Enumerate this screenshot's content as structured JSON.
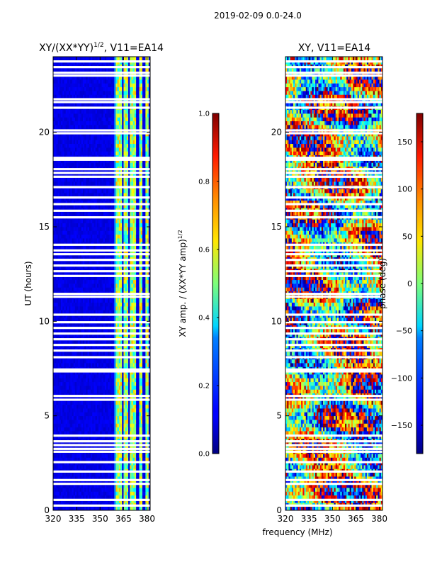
{
  "figure": {
    "suptitle": "2019-02-09 0.0-24.0",
    "xlabel_shared": "frequency (MHz)"
  },
  "chart_data": [
    {
      "type": "heatmap",
      "title_main": "XY/(XX*YY)",
      "title_exp": "1/2",
      "title_tail": ", V11=EA14",
      "ylabel": "UT (hours)",
      "xlim": [
        320,
        382
      ],
      "ylim": [
        0,
        24
      ],
      "xticks": [
        320,
        335,
        350,
        365,
        380
      ],
      "yticks": [
        0,
        5,
        10,
        15,
        20
      ],
      "colorbar": {
        "label_main": "XY amp. / (XX*YY amp)",
        "label_exp": "1/2",
        "range": [
          0.0,
          1.0
        ],
        "ticks": [
          "0.0",
          "0.2",
          "0.4",
          "0.6",
          "0.8",
          "1.0"
        ],
        "colormap": "jet"
      },
      "gap_hours": [
        0.25,
        0.55,
        1.4,
        1.6,
        2.05,
        2.55,
        3.1,
        3.25,
        3.45,
        3.65,
        3.95,
        5.85,
        6.05,
        7.35,
        7.45,
        8.1,
        8.45,
        8.75,
        9.05,
        9.35,
        9.65,
        9.95,
        10.35,
        11.3,
        11.45,
        12.4,
        12.65,
        12.95,
        13.25,
        13.55,
        13.75,
        14.05,
        15.5,
        15.85,
        16.2,
        16.55,
        17.1,
        17.65,
        17.85,
        18.05,
        18.55,
        18.65,
        19.95,
        20.1,
        21.3,
        21.6,
        21.75,
        23.0,
        23.15,
        23.45,
        23.75
      ],
      "bright_bands_mhz": [
        [
          360,
          364
        ],
        [
          365,
          368
        ],
        [
          369,
          373
        ],
        [
          375,
          377
        ],
        [
          379,
          381
        ]
      ],
      "amp_levels": {
        "background": 0.1,
        "band_low": 0.35,
        "band_high": 0.7
      }
    },
    {
      "type": "heatmap",
      "title_main": "XY, V11=EA14",
      "ylabel": "",
      "xlim": [
        320,
        382
      ],
      "ylim": [
        0,
        24
      ],
      "xticks": [
        320,
        335,
        350,
        365,
        380
      ],
      "yticks": [
        0,
        5,
        10,
        15,
        20
      ],
      "colorbar": {
        "label_main": "phase (deg)",
        "range": [
          -180,
          180
        ],
        "ticks": [
          "−150",
          "−100",
          "−50",
          "0",
          "50",
          "100",
          "150"
        ],
        "tick_values": [
          -150,
          -100,
          -50,
          0,
          50,
          100,
          150
        ],
        "colormap": "jet"
      },
      "gap_hours": [
        0.25,
        0.55,
        1.4,
        1.6,
        2.05,
        2.55,
        3.1,
        3.25,
        3.45,
        3.65,
        3.95,
        5.85,
        6.05,
        7.35,
        7.45,
        8.1,
        8.45,
        8.75,
        9.05,
        9.35,
        9.65,
        9.95,
        10.35,
        11.3,
        11.45,
        12.4,
        12.65,
        12.95,
        13.25,
        13.55,
        13.75,
        14.05,
        15.5,
        15.85,
        16.2,
        16.55,
        17.1,
        17.65,
        17.85,
        18.05,
        18.55,
        18.65,
        19.95,
        20.1,
        21.3,
        21.6,
        21.75,
        23.0,
        23.15,
        23.45,
        23.75
      ]
    }
  ]
}
